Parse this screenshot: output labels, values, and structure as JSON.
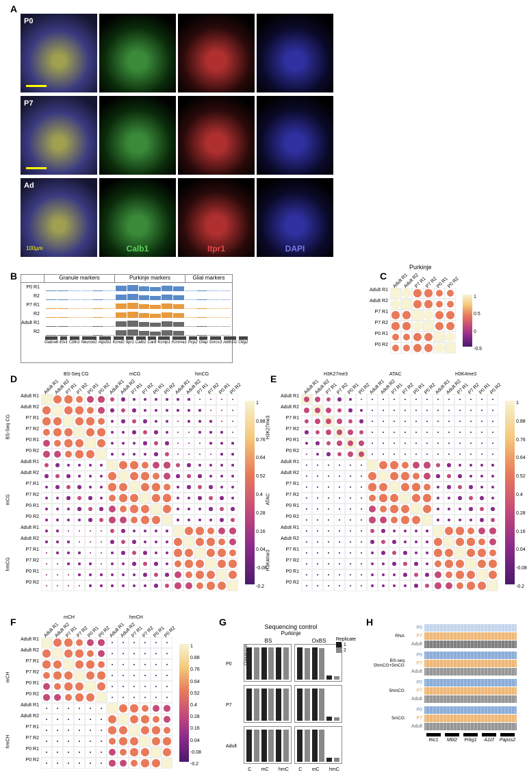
{
  "labels": {
    "A": "A",
    "B": "B",
    "C": "C",
    "D": "D",
    "E": "E",
    "F": "F",
    "G": "G",
    "H": "H"
  },
  "panelA": {
    "stages": [
      "P0",
      "P7",
      "Ad"
    ],
    "channels": [
      "Calb1",
      "Itpr1",
      "DAPI"
    ],
    "channel_colors": [
      "#5dd35d",
      "#e84a4a",
      "#7a7ae8"
    ],
    "scalebar_text": "100µm"
  },
  "panelB": {
    "sections": [
      "Granule markers",
      "Purkinje markers",
      "Glial markers"
    ],
    "stages": [
      "P0",
      "P7",
      "Adult"
    ],
    "replicates": [
      "R1",
      "R2"
    ],
    "stage_colors": [
      "#5a8ac8",
      "#e89a3e",
      "#6a6a6a"
    ],
    "genes": [
      "Gabra6",
      "Etv1",
      "Cbln1",
      "Neurod1",
      "Atp2b1",
      "Kcnd2",
      "Itpr1",
      "Calb1",
      "Car8",
      "Kcnip1",
      "Kcnma1",
      "Pcp2",
      "Gfap",
      "Sorcs3",
      "Aldh1l1",
      "Olig2"
    ],
    "purkinje_peak_pattern": [
      0.1,
      0.1,
      0.05,
      0.05,
      0.1,
      0.05,
      0.8,
      0.9,
      0.7,
      0.6,
      0.8,
      0.7,
      0.05,
      0.1,
      0.05,
      0.05
    ]
  },
  "panelC": {
    "title": "Purkinje",
    "rows": [
      "Adult R1",
      "Adult R2",
      "P7 R1",
      "P7 R2",
      "P0 R1",
      "P0 R2"
    ],
    "matrix": [
      [
        1.0,
        0.97,
        0.79,
        0.79,
        0.73,
        0.73
      ],
      [
        0.97,
        1.0,
        0.79,
        0.79,
        0.73,
        0.73
      ],
      [
        0.79,
        0.79,
        1.0,
        0.97,
        0.83,
        0.83
      ],
      [
        0.79,
        0.79,
        0.97,
        1.0,
        0.83,
        0.83
      ],
      [
        0.73,
        0.73,
        0.83,
        0.83,
        1.0,
        0.97
      ],
      [
        0.73,
        0.73,
        0.83,
        0.83,
        0.97,
        1.0
      ]
    ],
    "colormap_stops": [
      "#f7f3d3",
      "#f4c97a",
      "#e87a5a",
      "#c44a7a",
      "#8a2a8a",
      "#4a1a6a"
    ],
    "cbar_range": [
      -0.5,
      1
    ],
    "cbar_ticks": [
      1,
      0.5,
      0,
      -0.5
    ]
  },
  "panelD": {
    "groups": [
      "BS-Seq CG",
      "mCG",
      "hmCG"
    ],
    "rows": [
      "Adult R1",
      "Adult R2",
      "P7 R1",
      "P7 R2",
      "P0 R1",
      "P0 R2"
    ],
    "cbar_range": [
      -0.2,
      1
    ],
    "cbar_ticks": [
      1,
      0.88,
      0.76,
      0.64,
      0.52,
      0.4,
      0.28,
      0.16,
      0.04,
      -0.08,
      -0.2
    ]
  },
  "panelE": {
    "groups": [
      "H3K27me3",
      "ATAC",
      "H3K4me3"
    ],
    "rows": [
      "Adult R1",
      "Adult R2",
      "P7 R1",
      "P7 R2",
      "P0 R1",
      "P0 R2"
    ],
    "cbar_range": [
      -0.2,
      1
    ],
    "cbar_ticks": [
      1,
      0.88,
      0.76,
      0.64,
      0.52,
      0.4,
      0.28,
      0.16,
      0.04,
      -0.08,
      -0.2
    ]
  },
  "panelF": {
    "groups": [
      "mCH",
      "hmCH"
    ],
    "rows": [
      "Adult R1",
      "Adult R2",
      "P7 R1",
      "P7 R2",
      "P0 R1",
      "P0 R2"
    ],
    "cbar_range": [
      -0.2,
      1
    ],
    "cbar_ticks": [
      1,
      0.88,
      0.76,
      0.64,
      0.52,
      0.4,
      0.28,
      0.16,
      0.04,
      -0.08,
      -0.2
    ]
  },
  "panelG": {
    "title": "Sequencing control",
    "subtitle": "Purkinje",
    "methods": [
      "BS",
      "OxBS"
    ],
    "stages": [
      "P0",
      "P7",
      "Adult"
    ],
    "xcats": [
      "C",
      "mC",
      "hmC"
    ],
    "ylabel": "Conversion",
    "yticks": [
      0,
      100
    ],
    "replicates": [
      "1",
      "2"
    ],
    "rep_colors": [
      "#1a1a1a",
      "#888888"
    ],
    "data": {
      "BS": {
        "P0": [
          [
            98,
            97
          ],
          [
            98,
            97
          ],
          [
            98,
            97
          ]
        ],
        "P7": [
          [
            98,
            98
          ],
          [
            98,
            98
          ],
          [
            98,
            98
          ]
        ],
        "Adult": [
          [
            98,
            98
          ],
          [
            98,
            97
          ],
          [
            98,
            97
          ]
        ]
      },
      "OxBS": {
        "P0": [
          [
            97,
            96
          ],
          [
            97,
            96
          ],
          [
            12,
            11
          ]
        ],
        "P7": [
          [
            97,
            97
          ],
          [
            97,
            97
          ],
          [
            12,
            11
          ]
        ],
        "Adult": [
          [
            97,
            97
          ],
          [
            97,
            97
          ],
          [
            13,
            12
          ]
        ]
      }
    }
  },
  "panelH": {
    "groups": [
      "RNA",
      "BS-seq\n5hmCG+5mCG",
      "5hmCG",
      "5mCG"
    ],
    "stages": [
      "P0",
      "P7",
      "Adult"
    ],
    "stage_colors": [
      "#5a8ac8",
      "#e89a3e",
      "#6a6a6a"
    ],
    "genes": [
      "Ric1",
      "Mbl2",
      "Prkg1",
      "A1cf",
      "Papss2"
    ]
  },
  "colormap": {
    "high": "#f7f3d3",
    "midhigh": "#f4c97a",
    "mid": "#e87a5a",
    "midlow": "#c44a7a",
    "low": "#8a2a8a",
    "vlow": "#4a1a6a"
  }
}
